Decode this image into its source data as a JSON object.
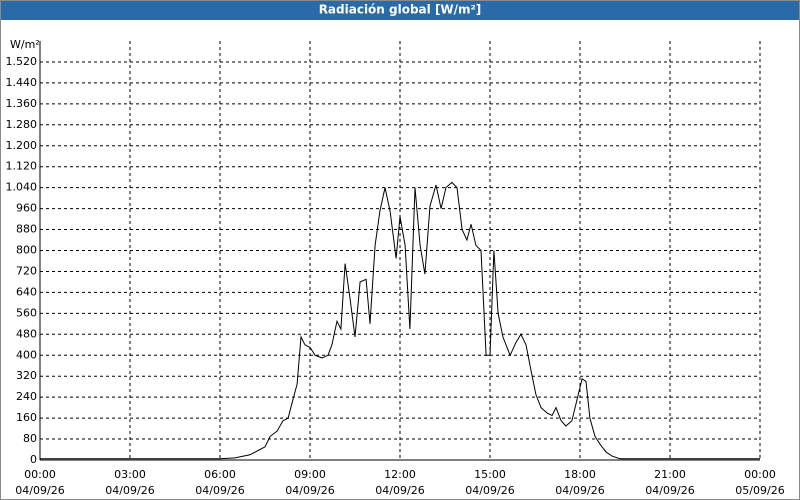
{
  "chart_data": {
    "type": "line",
    "title": "Radiación global [W/m²]",
    "y_label": "W/m²",
    "color": "#000000",
    "grid": true,
    "xlim": [
      0,
      24
    ],
    "ylim": [
      0,
      1600
    ],
    "xticks": [
      {
        "value": 0,
        "label": "00:00",
        "date": "04/09/26"
      },
      {
        "value": 3,
        "label": "03:00",
        "date": "04/09/26"
      },
      {
        "value": 6,
        "label": "06:00",
        "date": "04/09/26"
      },
      {
        "value": 9,
        "label": "09:00",
        "date": "04/09/26"
      },
      {
        "value": 12,
        "label": "12:00",
        "date": "04/09/26"
      },
      {
        "value": 15,
        "label": "15:00",
        "date": "04/09/26"
      },
      {
        "value": 18,
        "label": "18:00",
        "date": "04/09/26"
      },
      {
        "value": 21,
        "label": "21:00",
        "date": "04/09/26"
      },
      {
        "value": 24,
        "label": "00:00",
        "date": "05/09/26"
      }
    ],
    "yticks": [
      0,
      80,
      160,
      240,
      320,
      400,
      480,
      560,
      640,
      720,
      800,
      880,
      960,
      {
        "value": 1040,
        "label": "1.040"
      },
      {
        "value": 1120,
        "label": "1.120"
      },
      {
        "value": 1200,
        "label": "1.200"
      },
      {
        "value": 1280,
        "label": "1.280"
      },
      {
        "value": 1360,
        "label": "1.360"
      },
      {
        "value": 1440,
        "label": "1.440"
      },
      {
        "value": 1520,
        "label": "1.520"
      }
    ],
    "x": [
      0,
      3,
      6,
      6.5,
      7,
      7.33,
      7.5,
      7.67,
      7.9,
      8.1,
      8.27,
      8.43,
      8.57,
      8.7,
      8.83,
      9.0,
      9.17,
      9.4,
      9.6,
      9.73,
      9.9,
      10.03,
      10.17,
      10.33,
      10.5,
      10.67,
      10.87,
      11.0,
      11.17,
      11.33,
      11.5,
      11.67,
      11.87,
      12.0,
      12.17,
      12.33,
      12.5,
      12.67,
      12.83,
      13.0,
      13.2,
      13.37,
      13.53,
      13.73,
      13.9,
      14.07,
      14.23,
      14.37,
      14.53,
      14.7,
      14.87,
      15.0,
      15.13,
      15.27,
      15.43,
      15.67,
      15.87,
      16.03,
      16.2,
      16.37,
      16.53,
      16.7,
      16.9,
      17.07,
      17.2,
      17.37,
      17.53,
      17.73,
      17.9,
      18.07,
      18.2,
      18.33,
      18.5,
      18.67,
      18.87,
      19.07,
      19.33,
      21,
      24
    ],
    "values": [
      5,
      5,
      5,
      8,
      20,
      40,
      50,
      90,
      110,
      150,
      160,
      230,
      290,
      470,
      440,
      430,
      400,
      390,
      400,
      440,
      530,
      500,
      750,
      620,
      470,
      680,
      690,
      520,
      820,
      950,
      1040,
      950,
      770,
      930,
      820,
      500,
      1040,
      820,
      710,
      970,
      1050,
      960,
      1040,
      1060,
      1040,
      880,
      840,
      900,
      820,
      800,
      400,
      400,
      800,
      560,
      470,
      400,
      450,
      480,
      440,
      340,
      250,
      200,
      180,
      170,
      200,
      150,
      130,
      150,
      230,
      310,
      300,
      160,
      90,
      60,
      30,
      15,
      5,
      5,
      5
    ]
  }
}
